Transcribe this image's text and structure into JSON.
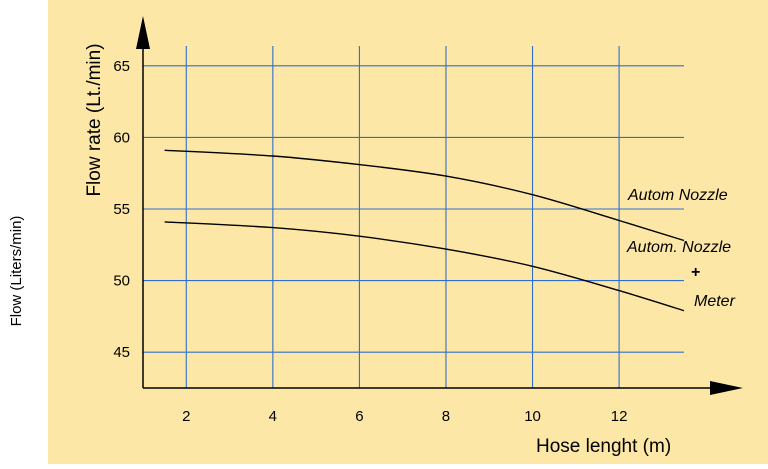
{
  "colors": {
    "panel": "#fde7a6",
    "grid": "#2f6fd1",
    "axis": "#000000",
    "curve": "#000000",
    "text": "#000000"
  },
  "outer_label": "Flow (Liters/min)",
  "chart_data": {
    "type": "line",
    "title": "",
    "xlabel": "Hose lenght (m)",
    "ylabel": "Flow rate (Lt./min)",
    "x_ticks": [
      2,
      4,
      6,
      8,
      10,
      12
    ],
    "y_ticks": [
      45,
      50,
      55,
      60,
      65
    ],
    "xlim": [
      1.0,
      13.8
    ],
    "ylim": [
      42.5,
      67.5
    ],
    "grid": true,
    "series": [
      {
        "name": "Autom Nozzle",
        "x": [
          1.5,
          4,
          6,
          8,
          10,
          12,
          13.5
        ],
        "y": [
          59.1,
          58.7,
          58.1,
          57.3,
          56.0,
          54.2,
          52.8
        ]
      },
      {
        "name": "Autom. Nozzle + Meter",
        "x": [
          1.5,
          4,
          6,
          8,
          10,
          12,
          13.5
        ],
        "y": [
          54.1,
          53.7,
          53.1,
          52.2,
          51.0,
          49.3,
          47.9
        ]
      }
    ],
    "annotations": {
      "series1_label": "Autom Nozzle",
      "series2_line1": "Autom. Nozzle",
      "series2_line2": "+",
      "series2_line3": "Meter"
    }
  }
}
